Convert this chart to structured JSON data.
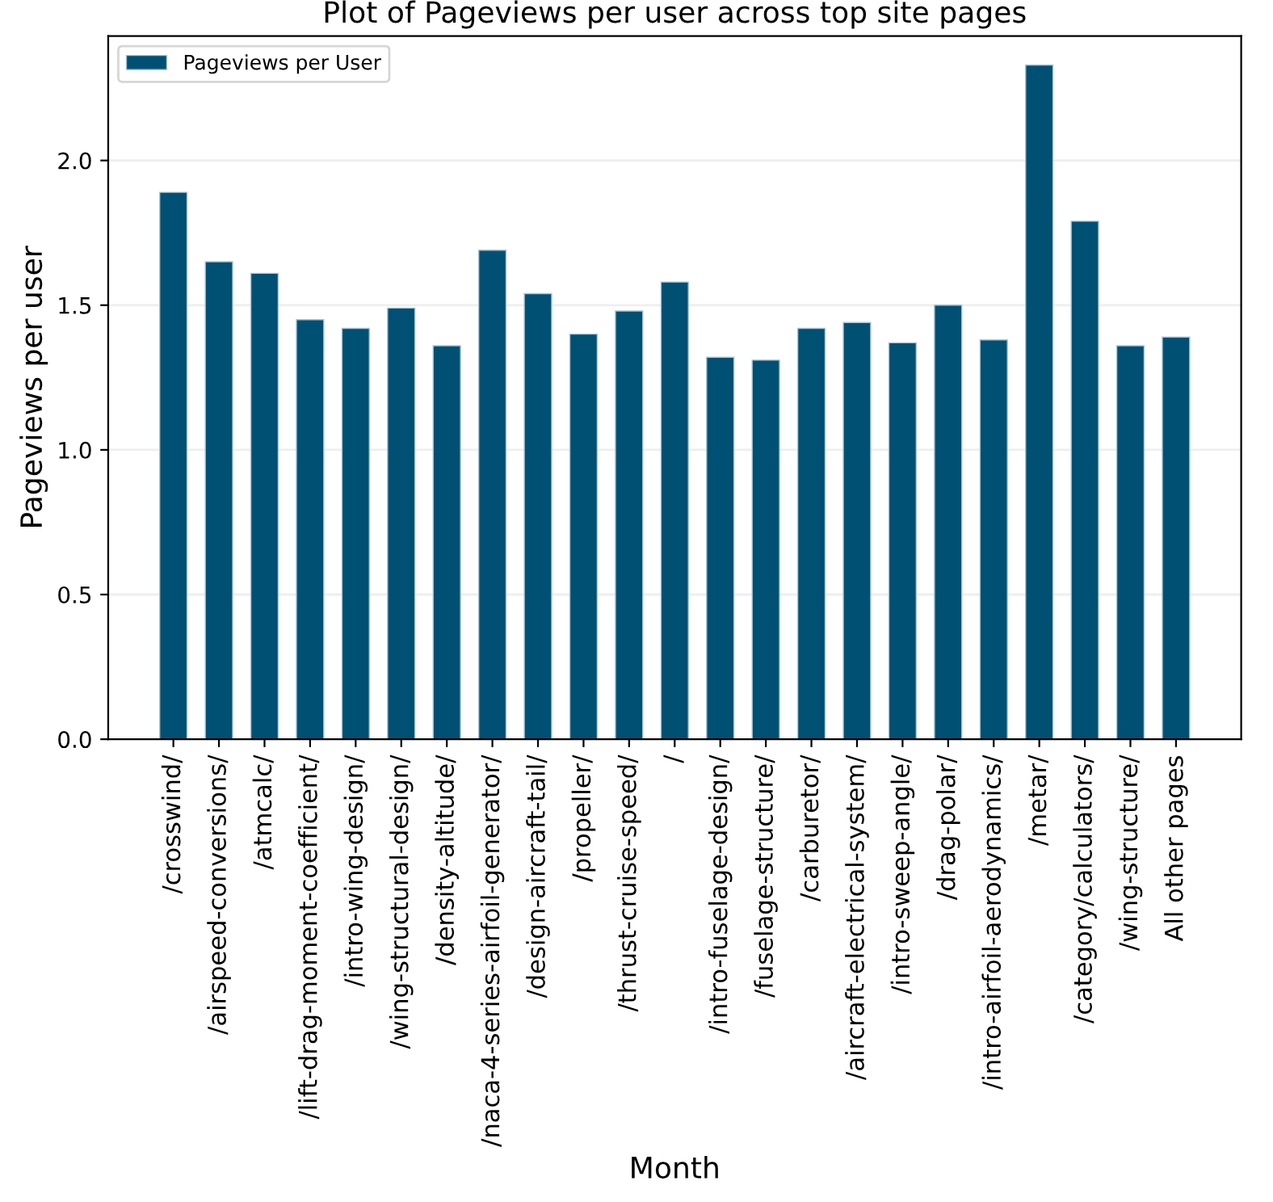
{
  "chart_data": {
    "type": "bar",
    "title": "Plot of Pageviews per user across top site pages",
    "xlabel": "Month",
    "ylabel": "Pageviews per user",
    "categories": [
      "/crosswind/",
      "/airspeed-conversions/",
      "/atmcalc/",
      "/lift-drag-moment-coefficient/",
      "/intro-wing-design/",
      "/wing-structural-design/",
      "/density-altitude/",
      "/naca-4-series-airfoil-generator/",
      "/design-aircraft-tail/",
      "/propeller/",
      "/thrust-cruise-speed/",
      "/",
      "/intro-fuselage-design/",
      "/fuselage-structure/",
      "/carburetor/",
      "/aircraft-electrical-system/",
      "/intro-sweep-angle/",
      "/drag-polar/",
      "/intro-airfoil-aerodynamics/",
      "/metar/",
      "/category/calculators/",
      "/wing-structure/",
      "All other pages"
    ],
    "series": [
      {
        "name": "Pageviews per User",
        "color": "#005073",
        "values": [
          1.89,
          1.65,
          1.61,
          1.45,
          1.42,
          1.49,
          1.36,
          1.69,
          1.54,
          1.4,
          1.48,
          1.58,
          1.32,
          1.31,
          1.42,
          1.44,
          1.37,
          1.5,
          1.38,
          2.33,
          1.79,
          1.36,
          1.39
        ]
      }
    ],
    "ylim": [
      0,
      2.43
    ],
    "yticks": [
      {
        "value": 0,
        "label": "0.0"
      },
      {
        "value": 0.5,
        "label": "0.5"
      },
      {
        "value": 1,
        "label": "1.0"
      },
      {
        "value": 1.5,
        "label": "1.5"
      },
      {
        "value": 2,
        "label": "2.0"
      }
    ],
    "grid": "y",
    "legend": "top left"
  }
}
